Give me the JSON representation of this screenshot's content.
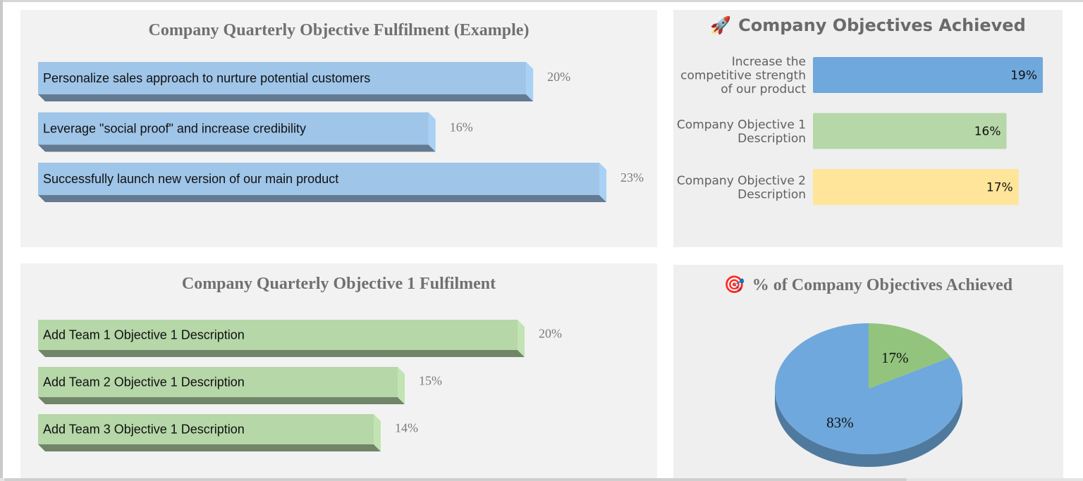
{
  "chart_data": [
    {
      "type": "bar",
      "title": "Company Quarterly Objective Fulfilment (Example)",
      "orientation": "horizontal",
      "style": "3d",
      "color": "#9fc5e8",
      "categories": [
        "Personalize sales approach to nurture potential customers",
        "Leverage \"social proof\" and increase credibility",
        "Successfully launch new version of our main product"
      ],
      "values": [
        20,
        16,
        23
      ],
      "value_labels": [
        "20%",
        "16%",
        "23%"
      ],
      "xlim": [
        0,
        23
      ],
      "legend": "none",
      "grid": false
    },
    {
      "type": "bar",
      "title": "Company Objectives Achieved",
      "title_icon": "rocket-icon",
      "orientation": "horizontal",
      "categories": [
        [
          "Increase the",
          "competitive strength",
          "of our product"
        ],
        [
          "Company Objective 1",
          "Description"
        ],
        [
          "Company Objective 2",
          "Description"
        ]
      ],
      "values": [
        19,
        16,
        17
      ],
      "value_labels": [
        "19%",
        "16%",
        "17%"
      ],
      "colors": [
        "#6fa8dc",
        "#b6d7a8",
        "#ffe599"
      ],
      "xlim": [
        0,
        19
      ],
      "legend": "none",
      "grid": false
    },
    {
      "type": "bar",
      "title": "Company Quarterly Objective 1 Fulfilment",
      "orientation": "horizontal",
      "style": "3d",
      "color": "#b6d7a8",
      "categories": [
        "Add Team 1 Objective 1 Description",
        "Add Team 2 Objective 1 Description",
        "Add Team 3 Objective 1 Description"
      ],
      "values": [
        20,
        15,
        14
      ],
      "value_labels": [
        "20%",
        "15%",
        "14%"
      ],
      "xlim": [
        0,
        20
      ],
      "legend": "none",
      "grid": false
    },
    {
      "type": "pie",
      "title": "% of Company Objectives Achieved",
      "title_icon": "target-icon",
      "style": "3d",
      "slices": [
        {
          "value": 17,
          "label": "17%",
          "color": "#93c47d"
        },
        {
          "value": 83,
          "label": "83%",
          "color": "#6fa8dc"
        }
      ],
      "legend": "none"
    }
  ]
}
